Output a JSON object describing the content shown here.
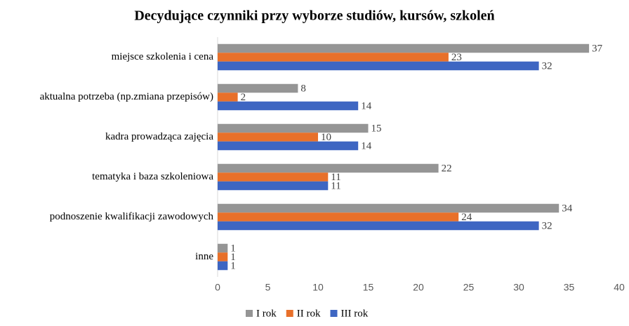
{
  "chart_data": {
    "type": "bar",
    "orientation": "horizontal",
    "title": "Decydujące czynniki przy wyborze studiów, kursów, szkoleń",
    "categories": [
      "miejsce szkolenia i cena",
      "aktualna potrzeba (np.zmiana przepisów)",
      "kadra prowadząca zajęcia",
      "tematyka i baza szkoleniowa",
      "podnoszenie kwalifikacji zawodowych",
      "inne"
    ],
    "series": [
      {
        "name": "I rok",
        "color": "#959595",
        "values": [
          37,
          8,
          15,
          22,
          34,
          1
        ]
      },
      {
        "name": "II rok",
        "color": "#e8702a",
        "values": [
          23,
          2,
          10,
          11,
          24,
          1
        ]
      },
      {
        "name": "III rok",
        "color": "#3e66c2",
        "values": [
          32,
          14,
          14,
          11,
          32,
          1
        ]
      }
    ],
    "xlim": [
      0,
      40
    ],
    "xticks": [
      0,
      5,
      10,
      15,
      20,
      25,
      30,
      35,
      40
    ],
    "grid": false,
    "legend": "bottom"
  }
}
